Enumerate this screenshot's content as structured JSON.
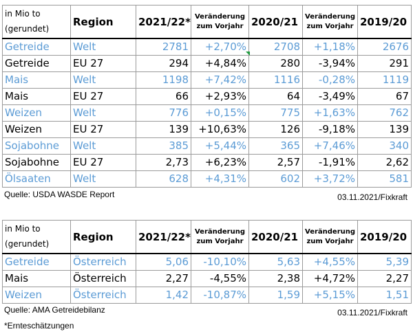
{
  "table1": {
    "header": {
      "unit": [
        "in Mio to",
        "(gerundet)"
      ],
      "region": "Region",
      "y1": "2021/22*",
      "chg1": [
        "Veränderung",
        "zum Vorjahr"
      ],
      "y2": "2020/21",
      "chg2": [
        "Veränderung",
        "zum Vorjahr"
      ],
      "y3": "2019/20"
    },
    "rows": [
      [
        "Getreide",
        "Welt",
        "2781",
        "+2,70%",
        "2708",
        "+1,18%",
        "2676"
      ],
      [
        "Getreide",
        "EU 27",
        "294",
        "+4,84%",
        "280",
        "-3,94%",
        "291"
      ],
      [
        "Mais",
        "Welt",
        "1198",
        "+7,42%",
        "1116",
        "-0,28%",
        "1119"
      ],
      [
        "Mais",
        "EU 27",
        "66",
        "+2,93%",
        "64",
        "-3,49%",
        "67"
      ],
      [
        "Weizen",
        "Welt",
        "776",
        "+0,15%",
        "775",
        "+1,63%",
        "762"
      ],
      [
        "Weizen",
        "EU 27",
        "139",
        "+10,63%",
        "126",
        "-9,18%",
        "139"
      ],
      [
        "Sojabohne",
        "Welt",
        "385",
        "+5,44%",
        "365",
        "+7,46%",
        "340"
      ],
      [
        "Sojabohne",
        "EU 27",
        "2,73",
        "+6,23%",
        "2,57",
        "-1,91%",
        "2,62"
      ],
      [
        "Ölsaaten",
        "Welt",
        "628",
        "+4,31%",
        "602",
        "+3,72%",
        "581"
      ]
    ],
    "source": "Quelle: USDA WASDE Report",
    "date": "03.11.2021/Fixkraft"
  },
  "table2": {
    "header": {
      "unit": [
        "in Mio to",
        "(gerundet)"
      ],
      "region": "Region",
      "y1": "2021/22*",
      "chg1": [
        "Veränderung",
        "zum Vorjahr"
      ],
      "y2": "2020/21",
      "chg2": [
        "Veränderung",
        "zum Vorjahr"
      ],
      "y3": "2019/20"
    },
    "rows": [
      [
        "Getreide",
        "Österreich",
        "5,06",
        "-10,10%",
        "5,63",
        "+4,55%",
        "5,39"
      ],
      [
        "Mais",
        "Österreich",
        "2,27",
        "-4,55%",
        "2,38",
        "+4,72%",
        "2,27"
      ],
      [
        "Weizen",
        "Österreich",
        "1,42",
        "-10,87%",
        "1,59",
        "+5,15%",
        "1,51"
      ]
    ],
    "source": "Quelle: AMA Getreidebilanz",
    "date": "03.11.2021/Fixkraft"
  },
  "footnote": "*Ernteschätzungen",
  "colors": {
    "world_row": "#5b9bd5",
    "grid": "#9a9a9a",
    "cell_marker": "#1f9a3e"
  }
}
